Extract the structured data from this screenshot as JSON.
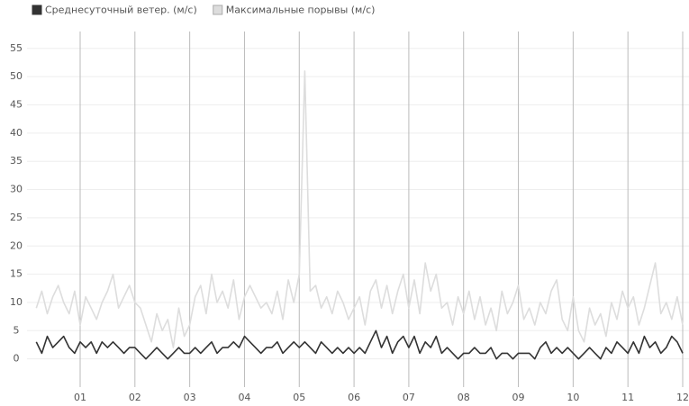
{
  "chart_data": {
    "type": "line",
    "legend": "top-left",
    "grid": true,
    "xlim": [
      0.03,
      12.115
    ],
    "ylim": [
      -5,
      58
    ],
    "yticks": [
      0,
      5,
      10,
      15,
      20,
      25,
      30,
      35,
      40,
      45,
      50,
      55
    ],
    "xticks": [
      {
        "value": 1,
        "label": "01"
      },
      {
        "value": 2,
        "label": "02"
      },
      {
        "value": 3,
        "label": "03"
      },
      {
        "value": 4,
        "label": "04"
      },
      {
        "value": 5,
        "label": "05"
      },
      {
        "value": 6,
        "label": "06"
      },
      {
        "value": 7,
        "label": "07"
      },
      {
        "value": 8,
        "label": "08"
      },
      {
        "value": 9,
        "label": "09"
      },
      {
        "value": 10,
        "label": "10"
      },
      {
        "value": 11,
        "label": "11"
      },
      {
        "value": 12,
        "label": "12"
      }
    ],
    "x": [
      0.2,
      0.3,
      0.4,
      0.5,
      0.6,
      0.7,
      0.8,
      0.9,
      1.0,
      1.1,
      1.2,
      1.3,
      1.4,
      1.5,
      1.6,
      1.7,
      1.8,
      1.9,
      2.0,
      2.1,
      2.2,
      2.3,
      2.4,
      2.5,
      2.6,
      2.7,
      2.8,
      2.9,
      3.0,
      3.1,
      3.2,
      3.3,
      3.4,
      3.5,
      3.6,
      3.7,
      3.8,
      3.9,
      4.0,
      4.1,
      4.2,
      4.3,
      4.4,
      4.5,
      4.6,
      4.7,
      4.8,
      4.9,
      5.0,
      5.1,
      5.2,
      5.3,
      5.4,
      5.5,
      5.6,
      5.7,
      5.8,
      5.9,
      6.0,
      6.1,
      6.2,
      6.3,
      6.4,
      6.5,
      6.6,
      6.7,
      6.8,
      6.9,
      7.0,
      7.1,
      7.2,
      7.3,
      7.4,
      7.5,
      7.6,
      7.7,
      7.8,
      7.9,
      8.0,
      8.1,
      8.2,
      8.3,
      8.4,
      8.5,
      8.6,
      8.7,
      8.8,
      8.9,
      9.0,
      9.1,
      9.2,
      9.3,
      9.4,
      9.5,
      9.6,
      9.7,
      9.8,
      9.9,
      10.0,
      10.1,
      10.2,
      10.3,
      10.4,
      10.5,
      10.6,
      10.7,
      10.8,
      10.9,
      11.0,
      11.1,
      11.2,
      11.3,
      11.4,
      11.5,
      11.6,
      11.7,
      11.8,
      11.9,
      12.0
    ],
    "series": [
      {
        "name": "Среднесуточный ветер. (м/с)",
        "color": "#333333",
        "values": [
          3,
          1,
          4,
          2,
          3,
          4,
          2,
          1,
          3,
          2,
          3,
          1,
          3,
          2,
          3,
          2,
          1,
          2,
          2,
          1,
          0,
          1,
          2,
          1,
          0,
          1,
          2,
          1,
          1,
          2,
          1,
          2,
          3,
          1,
          2,
          2,
          3,
          2,
          4,
          3,
          2,
          1,
          2,
          2,
          3,
          1,
          2,
          3,
          2,
          3,
          2,
          1,
          3,
          2,
          1,
          2,
          1,
          2,
          1,
          2,
          1,
          3,
          5,
          2,
          4,
          1,
          3,
          4,
          2,
          4,
          1,
          3,
          2,
          4,
          1,
          2,
          1,
          0,
          1,
          1,
          2,
          1,
          1,
          2,
          0,
          1,
          1,
          0,
          1,
          1,
          1,
          0,
          2,
          3,
          1,
          2,
          1,
          2,
          1,
          0,
          1,
          2,
          1,
          0,
          2,
          1,
          3,
          2,
          1,
          3,
          1,
          4,
          2,
          3,
          1,
          2,
          4,
          3,
          1
        ]
      },
      {
        "name": "Максимальные порывы (м/с)",
        "color": "#dddddd",
        "values": [
          9,
          12,
          8,
          11,
          13,
          10,
          8,
          12,
          6,
          11,
          9,
          7,
          10,
          12,
          15,
          9,
          11,
          13,
          10,
          9,
          6,
          3,
          8,
          5,
          7,
          2,
          9,
          4,
          6,
          11,
          13,
          8,
          15,
          10,
          12,
          9,
          14,
          7,
          11,
          13,
          11,
          9,
          10,
          8,
          12,
          7,
          14,
          10,
          15,
          51,
          12,
          13,
          9,
          11,
          8,
          12,
          10,
          7,
          9,
          11,
          6,
          12,
          14,
          9,
          13,
          8,
          12,
          15,
          9,
          14,
          8,
          17,
          12,
          15,
          9,
          10,
          6,
          11,
          8,
          12,
          7,
          11,
          6,
          9,
          5,
          12,
          8,
          10,
          13,
          7,
          9,
          6,
          10,
          8,
          12,
          14,
          7,
          5,
          11,
          5,
          3,
          9,
          6,
          8,
          4,
          10,
          7,
          12,
          9,
          11,
          6,
          9,
          13,
          17,
          8,
          10,
          7,
          11,
          6
        ]
      }
    ]
  }
}
